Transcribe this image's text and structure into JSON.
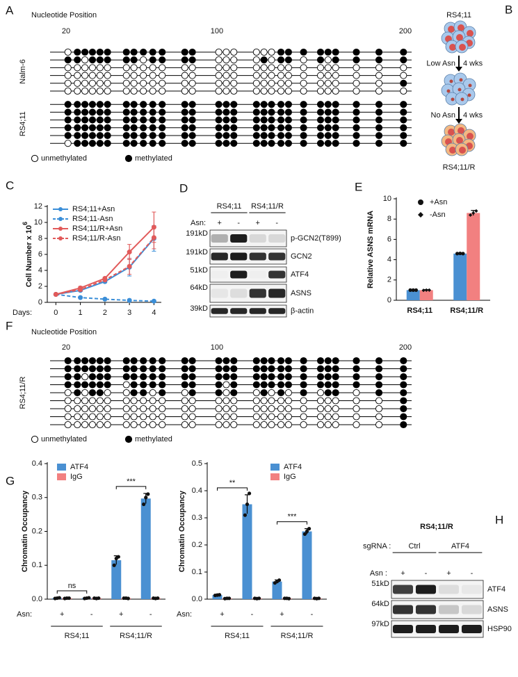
{
  "panel_a": {
    "label": "A",
    "axis_title": "Nucleotide Position",
    "xlim": [
      20,
      200
    ],
    "xticks": [
      20,
      100,
      200
    ],
    "sites": [
      21,
      26,
      30,
      34,
      38,
      42,
      52,
      56,
      61,
      66,
      71,
      83,
      87,
      101,
      105,
      109,
      121,
      125,
      129,
      134,
      138,
      146,
      155,
      159,
      163,
      174,
      186,
      199
    ],
    "groups": [
      {
        "name": "Nalm-6",
        "rows": [
          [
            0,
            1,
            1,
            1,
            1,
            1,
            1,
            1,
            1,
            1,
            1,
            1,
            1,
            0,
            0,
            0,
            0,
            0,
            0,
            1,
            1,
            1,
            1,
            1,
            1,
            1,
            1,
            1
          ],
          [
            1,
            1,
            0,
            1,
            1,
            1,
            1,
            1,
            0,
            1,
            1,
            1,
            1,
            0,
            0,
            0,
            0,
            1,
            0,
            1,
            1,
            0,
            1,
            0,
            1,
            1,
            1,
            1
          ],
          [
            0,
            0,
            0,
            0,
            0,
            0,
            0,
            0,
            0,
            0,
            0,
            0,
            0,
            0,
            0,
            0,
            0,
            0,
            0,
            0,
            0,
            0,
            0,
            0,
            0,
            0,
            0,
            0
          ],
          [
            0,
            0,
            0,
            0,
            0,
            0,
            0,
            0,
            0,
            0,
            0,
            0,
            0,
            0,
            0,
            0,
            0,
            0,
            0,
            0,
            0,
            0,
            0,
            0,
            0,
            0,
            0,
            0
          ],
          [
            0,
            0,
            0,
            0,
            0,
            0,
            0,
            0,
            0,
            0,
            0,
            0,
            0,
            0,
            0,
            0,
            0,
            0,
            0,
            0,
            0,
            0,
            0,
            0,
            0,
            0,
            0,
            1
          ],
          [
            0,
            0,
            0,
            0,
            0,
            0,
            0,
            0,
            0,
            0,
            0,
            0,
            0,
            0,
            0,
            0,
            0,
            0,
            0,
            0,
            0,
            0,
            0,
            0,
            0,
            0,
            0,
            0
          ]
        ]
      },
      {
        "name": "RS4;11",
        "rows": [
          [
            1,
            1,
            1,
            1,
            1,
            1,
            1,
            1,
            1,
            1,
            1,
            1,
            1,
            1,
            1,
            1,
            1,
            1,
            1,
            1,
            1,
            1,
            1,
            1,
            1,
            1,
            1,
            1
          ],
          [
            1,
            1,
            1,
            1,
            1,
            1,
            1,
            1,
            1,
            1,
            1,
            1,
            1,
            1,
            1,
            1,
            1,
            1,
            1,
            1,
            1,
            1,
            1,
            1,
            1,
            1,
            1,
            1
          ],
          [
            1,
            1,
            1,
            1,
            1,
            1,
            1,
            1,
            1,
            1,
            1,
            1,
            1,
            1,
            1,
            1,
            1,
            1,
            1,
            1,
            1,
            1,
            1,
            1,
            1,
            1,
            1,
            1
          ],
          [
            1,
            1,
            1,
            1,
            1,
            1,
            1,
            1,
            1,
            1,
            1,
            1,
            1,
            1,
            1,
            1,
            1,
            1,
            1,
            1,
            1,
            1,
            1,
            1,
            1,
            1,
            1,
            1
          ],
          [
            1,
            1,
            1,
            1,
            1,
            1,
            1,
            1,
            1,
            1,
            1,
            1,
            1,
            1,
            1,
            1,
            1,
            1,
            1,
            1,
            1,
            1,
            1,
            1,
            1,
            1,
            1,
            1
          ],
          [
            0,
            1,
            1,
            1,
            1,
            1,
            1,
            1,
            1,
            1,
            1,
            1,
            1,
            1,
            1,
            1,
            1,
            1,
            1,
            1,
            1,
            1,
            1,
            1,
            1,
            1,
            1,
            1
          ]
        ]
      }
    ],
    "legend": [
      "unmethylated",
      "methylated"
    ]
  },
  "panel_b": {
    "label": "B",
    "top": "RS4;11",
    "steps": [
      [
        "Low Asn",
        "4 wks"
      ],
      [
        "No Asn",
        "4 wks"
      ]
    ],
    "bottom": "RS4;11/R"
  },
  "panel_d": {
    "label": "D",
    "groups": [
      "RS4;11",
      "RS4;11/R"
    ],
    "asn_label": "Asn:",
    "asn": [
      "+",
      "-",
      "+",
      "-"
    ],
    "rows": [
      {
        "mw": "191kD",
        "protein": "p-GCN2(T899)",
        "bands": [
          0.3,
          0.95,
          0.12,
          0.12
        ]
      },
      {
        "mw": "191kD",
        "protein": "GCN2",
        "bands": [
          0.9,
          0.95,
          0.85,
          0.85
        ]
      },
      {
        "mw": "51kD",
        "protein": "ATF4",
        "bands": [
          0.02,
          0.95,
          0.02,
          0.85
        ]
      },
      {
        "mw": "64kD",
        "protein": "ASNS",
        "bands": [
          0.06,
          0.1,
          0.85,
          0.9
        ]
      },
      {
        "mw": "39kD",
        "protein": "β-actin",
        "bands": [
          0.9,
          0.9,
          0.9,
          0.9
        ]
      }
    ]
  },
  "panel_f": {
    "label": "F",
    "axis_title": "Nucleotide Position",
    "xlim": [
      20,
      200
    ],
    "xticks": [
      20,
      100,
      200
    ],
    "sites": [
      21,
      26,
      30,
      34,
      38,
      42,
      52,
      56,
      61,
      66,
      71,
      83,
      87,
      101,
      105,
      109,
      121,
      125,
      129,
      134,
      138,
      146,
      155,
      159,
      163,
      174,
      186,
      199
    ],
    "groups": [
      {
        "name": "RS4;11/R",
        "rows": [
          [
            1,
            1,
            1,
            1,
            1,
            1,
            1,
            1,
            1,
            1,
            1,
            1,
            1,
            1,
            1,
            1,
            1,
            1,
            1,
            1,
            1,
            1,
            1,
            1,
            1,
            1,
            1,
            1
          ],
          [
            1,
            1,
            1,
            1,
            1,
            1,
            1,
            1,
            1,
            1,
            1,
            1,
            1,
            1,
            1,
            1,
            1,
            1,
            1,
            1,
            1,
            1,
            1,
            1,
            1,
            1,
            1,
            1
          ],
          [
            1,
            1,
            0,
            1,
            1,
            1,
            1,
            1,
            1,
            1,
            1,
            1,
            1,
            1,
            1,
            1,
            1,
            1,
            1,
            1,
            1,
            1,
            1,
            1,
            1,
            1,
            1,
            1
          ],
          [
            1,
            1,
            1,
            1,
            1,
            1,
            0,
            1,
            1,
            1,
            1,
            1,
            1,
            1,
            0,
            1,
            1,
            1,
            1,
            1,
            1,
            1,
            1,
            1,
            1,
            1,
            1,
            1
          ],
          [
            0,
            1,
            0,
            1,
            1,
            0,
            0,
            1,
            1,
            0,
            1,
            0,
            1,
            1,
            0,
            1,
            0,
            1,
            0,
            1,
            0,
            1,
            0,
            1,
            1,
            0,
            1,
            1
          ],
          [
            0,
            0,
            0,
            0,
            0,
            0,
            0,
            0,
            0,
            0,
            0,
            0,
            0,
            0,
            0,
            0,
            0,
            0,
            0,
            0,
            0,
            0,
            0,
            0,
            0,
            0,
            0,
            1
          ],
          [
            0,
            0,
            0,
            0,
            0,
            0,
            0,
            0,
            0,
            0,
            0,
            0,
            0,
            0,
            0,
            0,
            0,
            0,
            0,
            0,
            0,
            0,
            0,
            0,
            0,
            0,
            0,
            1
          ],
          [
            0,
            0,
            0,
            0,
            0,
            0,
            0,
            0,
            0,
            0,
            0,
            0,
            0,
            0,
            0,
            0,
            0,
            0,
            0,
            0,
            0,
            0,
            0,
            0,
            0,
            0,
            0,
            1
          ],
          [
            0,
            0,
            0,
            0,
            0,
            0,
            0,
            0,
            0,
            0,
            0,
            0,
            0,
            0,
            0,
            0,
            0,
            0,
            0,
            0,
            0,
            0,
            0,
            0,
            0,
            0,
            0,
            1
          ]
        ]
      }
    ],
    "legend": [
      "unmethylated",
      "methylated"
    ]
  },
  "panel_h": {
    "label": "H",
    "title": "RS4;11/R",
    "group_label": "sgRNA :",
    "groups": [
      "Ctrl",
      "ATF4"
    ],
    "asn_label": "Asn :",
    "asn": [
      "+",
      "-",
      "+",
      "-"
    ],
    "rows": [
      {
        "mw": "51kD",
        "protein": "ATF4",
        "bands": [
          0.8,
          0.95,
          0.1,
          0.05
        ]
      },
      {
        "mw": "64kD",
        "protein": "ASNS",
        "bands": [
          0.85,
          0.85,
          0.2,
          0.12
        ]
      },
      {
        "mw": "97kD",
        "protein": "HSP90",
        "bands": [
          0.95,
          0.95,
          0.95,
          0.95
        ]
      }
    ]
  },
  "chart_data": [
    {
      "type": "line",
      "label": "C",
      "y_label": "Cell Number x 10",
      "y_label_sup": "6",
      "x_label": "Days:",
      "x": [
        0,
        1,
        2,
        3,
        4
      ],
      "xlim": [
        -0.35,
        4.3
      ],
      "xticks": [
        0,
        1,
        2,
        3,
        4
      ],
      "ylim": [
        0,
        12
      ],
      "yticks": [
        0,
        2,
        4,
        6,
        8,
        10,
        12
      ],
      "legend": "upper left",
      "series": [
        {
          "name": "RS4;11+Asn",
          "color": "#3a8ed8",
          "dash": false,
          "values": [
            1,
            1.5,
            2.6,
            4.4,
            8.0
          ],
          "errors": [
            0.05,
            0.15,
            0.1,
            1.1,
            1.6
          ]
        },
        {
          "name": "RS4;11-Asn",
          "color": "#3a8ed8",
          "dash": true,
          "values": [
            1,
            0.6,
            0.4,
            0.25,
            0.15
          ],
          "errors": [
            0.05,
            0.05,
            0.03,
            0.03,
            0.03
          ]
        },
        {
          "name": "RS4;11/R+Asn",
          "color": "#e15a5a",
          "dash": false,
          "values": [
            1,
            1.8,
            3.0,
            6.3,
            9.4
          ],
          "errors": [
            0.05,
            0.2,
            0.15,
            0.95,
            1.9
          ]
        },
        {
          "name": "RS4;11/R-Asn",
          "color": "#e15a5a",
          "dash": true,
          "values": [
            1,
            1.6,
            2.8,
            4.5,
            8.1
          ],
          "errors": [
            0.05,
            0.2,
            0.15,
            1.0,
            1.4
          ]
        }
      ]
    },
    {
      "type": "bar",
      "label": "E",
      "y_label": "Relative ASNS mRNA",
      "categories": [
        "RS4;11",
        "RS4;11/R"
      ],
      "ylim": [
        0,
        10
      ],
      "yticks": [
        0,
        2,
        4,
        6,
        8,
        10
      ],
      "legend": "upper left",
      "series": [
        {
          "name": "+Asn",
          "color": "#4a90d2",
          "marker": "circle",
          "values": [
            1,
            4.6
          ],
          "errors": [
            0.03,
            0.05
          ],
          "points": [
            [
              1,
              1,
              1
            ],
            [
              4.6,
              4.62,
              4.6
            ]
          ]
        },
        {
          "name": "-Asn",
          "color": "#f28080",
          "marker": "diamond",
          "values": [
            1,
            8.6
          ],
          "errors": [
            0.05,
            0.25
          ],
          "points": [
            [
              0.98,
              1,
              1
            ],
            [
              8.4,
              8.6,
              8.8
            ]
          ]
        }
      ]
    },
    {
      "type": "bar",
      "label": "G",
      "y_label": "Chromatin Occupancy",
      "x_label": "Asn:",
      "categories": [
        "+",
        "-",
        "+",
        "-"
      ],
      "groups": [
        {
          "name": "RS4;11",
          "significance": "ns"
        },
        {
          "name": "RS4;11/R",
          "significance": "***"
        }
      ],
      "ylim": [
        0,
        0.4
      ],
      "yticks": [
        {
          "value": 0,
          "label": "0.0"
        },
        0.1,
        0.2,
        0.3,
        0.4
      ],
      "legend": "upper left",
      "series": [
        {
          "name": "ATF4",
          "color": "#4a90d2",
          "values": [
            0.003,
            0.003,
            0.115,
            0.297
          ],
          "errors": [
            0.001,
            0.001,
            0.013,
            0.015
          ],
          "points": [
            [
              0.002,
              0.003,
              0.004
            ],
            [
              0.002,
              0.003,
              0.004
            ],
            [
              0.1,
              0.12,
              0.125
            ],
            [
              0.28,
              0.3,
              0.31
            ]
          ]
        },
        {
          "name": "IgG",
          "color": "#f28080",
          "values": [
            0.003,
            0.003,
            0.003,
            0.003
          ],
          "errors": [
            0.001,
            0.001,
            0.001,
            0.001
          ],
          "points": [
            [
              0.002,
              0.003,
              0.003
            ],
            [
              0.003,
              0.002,
              0.003
            ],
            [
              0.003,
              0.003,
              0.002
            ],
            [
              0.003,
              0.002,
              0.003
            ]
          ]
        }
      ]
    },
    {
      "type": "bar",
      "y_label": "Chromatin Occupancy",
      "x_label": "Asn:",
      "categories": [
        "+",
        "-",
        "+",
        "-"
      ],
      "groups": [
        {
          "name": "RS4;11",
          "significance": "**"
        },
        {
          "name": "RS4;11/R",
          "significance": "***"
        }
      ],
      "ylim": [
        0,
        0.5
      ],
      "yticks": [
        {
          "value": 0,
          "label": "0.0"
        },
        0.1,
        0.2,
        0.3,
        0.4,
        0.5
      ],
      "legend": "upper right",
      "series": [
        {
          "name": "ATF4",
          "color": "#4a90d2",
          "values": [
            0.015,
            0.35,
            0.065,
            0.25
          ],
          "errors": [
            0.002,
            0.035,
            0.006,
            0.01
          ],
          "points": [
            [
              0.014,
              0.015,
              0.016
            ],
            [
              0.31,
              0.35,
              0.39
            ],
            [
              0.06,
              0.065,
              0.07
            ],
            [
              0.24,
              0.25,
              0.26
            ]
          ]
        },
        {
          "name": "IgG",
          "color": "#f28080",
          "values": [
            0.003,
            0.003,
            0.003,
            0.003
          ],
          "errors": [
            0.001,
            0.001,
            0.001,
            0.001
          ],
          "points": [
            [
              0.002,
              0.003,
              0.003
            ],
            [
              0.003,
              0.002,
              0.003
            ],
            [
              0.003,
              0.003,
              0.002
            ],
            [
              0.003,
              0.002,
              0.003
            ]
          ]
        }
      ]
    }
  ]
}
